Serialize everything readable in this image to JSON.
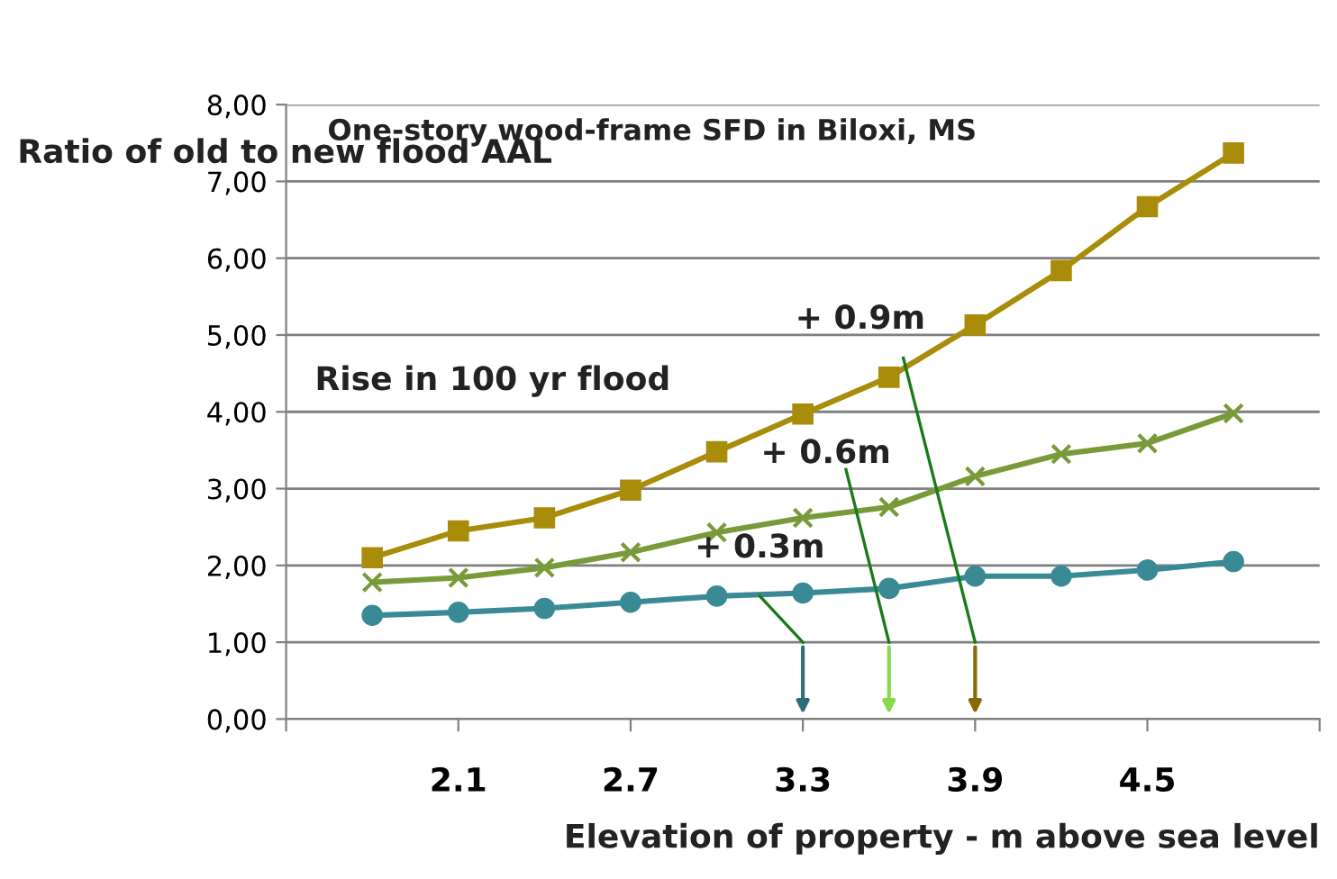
{
  "chart_data": {
    "type": "line",
    "title": "One-story wood-frame SFD in Biloxi, MS",
    "ylabel": "Ratio of old to new flood AAL",
    "xlabel": "Elevation of property - m above sea level",
    "x": [
      1.8,
      2.1,
      2.4,
      2.7,
      3.0,
      3.3,
      3.6,
      3.9,
      4.2,
      4.5,
      4.8
    ],
    "series": [
      {
        "color": "#a88c0a",
        "marker": "square",
        "values": [
          2.1,
          2.45,
          2.62,
          2.98,
          3.48,
          3.97,
          4.45,
          5.13,
          5.84,
          6.67,
          7.37
        ]
      },
      {
        "color": "#7a9a3a",
        "marker": "cross",
        "values": [
          1.78,
          1.84,
          1.97,
          2.17,
          2.43,
          2.62,
          2.76,
          3.16,
          3.45,
          3.59,
          3.98
        ]
      },
      {
        "color": "#3a8a96",
        "marker": "circle",
        "values": [
          1.35,
          1.39,
          1.44,
          1.52,
          1.6,
          1.64,
          1.7,
          1.86,
          1.86,
          1.94,
          2.05
        ]
      }
    ],
    "xlim": [
      1.5,
      5.1
    ],
    "xticks": [
      {
        "value": 1.5,
        "label": null
      },
      2.1,
      2.7,
      3.3,
      3.9,
      4.5,
      {
        "value": 5.1,
        "label": null
      }
    ],
    "ylim": [
      0,
      8
    ],
    "yticks": [
      {
        "value": 0,
        "label": "0,00"
      },
      {
        "value": 1,
        "label": "1,00"
      },
      {
        "value": 2,
        "label": "2,00"
      },
      {
        "value": 3,
        "label": "3,00"
      },
      {
        "value": 4,
        "label": "4,00"
      },
      {
        "value": 5,
        "label": "5,00"
      },
      {
        "value": 6,
        "label": "6,00"
      },
      {
        "value": 7,
        "label": "7,00"
      },
      {
        "value": 8,
        "label": "8,00"
      }
    ],
    "grid": "y",
    "line_style": "solid",
    "annotations": [
      "Rise in 100 yr flood",
      {
        "text": "+ 0.3m",
        "x": 3.3,
        "y": 1.64
      },
      {
        "text": "+ 0.6m",
        "x": 3.6,
        "y": 2.76
      },
      {
        "text": "+ 0.9m",
        "x": 3.9,
        "y": 5.13
      }
    ]
  }
}
